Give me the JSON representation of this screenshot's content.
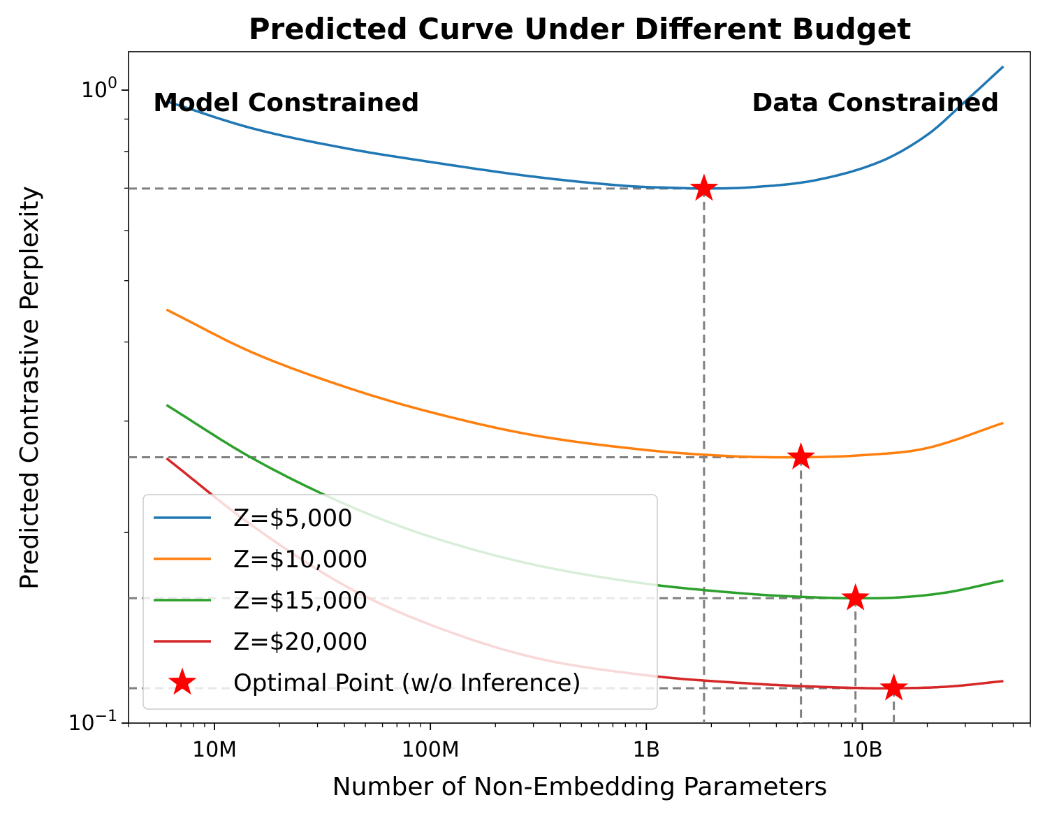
{
  "chart_data": {
    "type": "line",
    "title": "Predicted Curve Under Different Budget",
    "xlabel": "Number of Non-Embedding Parameters",
    "ylabel": "Predicted Contrastive Perplexity",
    "xscale": "log",
    "yscale": "log",
    "xlim": [
      4000000,
      60000000000
    ],
    "ylim": [
      0.1,
      1.15
    ],
    "x_ticks": [
      {
        "value": 10000000,
        "label": "10M"
      },
      {
        "value": 100000000,
        "label": "100M"
      },
      {
        "value": 1000000000,
        "label": "1B"
      },
      {
        "value": 10000000000,
        "label": "10B"
      }
    ],
    "y_ticks": [
      {
        "value": 1.0,
        "base": "10",
        "exp": "0"
      },
      {
        "value": 0.1,
        "base": "10",
        "exp": "−1"
      }
    ],
    "grid": false,
    "legend_position": "lower-left",
    "annotations": [
      {
        "text": "Model Constrained",
        "x": 5200000,
        "y": 0.958,
        "anchor": "start"
      },
      {
        "text": "Data Constrained",
        "x": 43000000000,
        "y": 0.958,
        "anchor": "end"
      }
    ],
    "series": [
      {
        "name": "Z=$5,000",
        "color": "#1f77b4",
        "x": [
          6000000,
          15000000,
          40000000,
          100000000,
          300000000,
          800000000,
          1500000000,
          1850000000,
          3000000000,
          6000000000,
          12000000000,
          20000000000,
          30000000000,
          45000000000
        ],
        "y": [
          0.96,
          0.87,
          0.81,
          0.77,
          0.73,
          0.706,
          0.7,
          0.699,
          0.702,
          0.72,
          0.77,
          0.85,
          0.96,
          1.09
        ]
      },
      {
        "name": "Z=$10,000",
        "color": "#ff7f0e",
        "x": [
          6000000,
          15000000,
          40000000,
          100000000,
          300000000,
          1000000000,
          2500000000,
          5200000000,
          10000000000,
          20000000000,
          45000000000
        ],
        "y": [
          0.45,
          0.385,
          0.34,
          0.31,
          0.285,
          0.27,
          0.264,
          0.263,
          0.265,
          0.272,
          0.298
        ]
      },
      {
        "name": "Z=$15,000",
        "color": "#2ca02c",
        "x": [
          6000000,
          15000000,
          40000000,
          100000000,
          300000000,
          1000000000,
          3000000000,
          6000000000,
          9300000000,
          15000000000,
          25000000000,
          45000000000
        ],
        "y": [
          0.318,
          0.262,
          0.222,
          0.197,
          0.178,
          0.166,
          0.16,
          0.158,
          0.1575,
          0.158,
          0.161,
          0.168
        ]
      },
      {
        "name": "Z=$20,000",
        "color": "#d62728",
        "x": [
          6000000,
          15000000,
          40000000,
          100000000,
          300000000,
          1000000000,
          3000000000,
          8000000000,
          14000000000,
          25000000000,
          45000000000
        ],
        "y": [
          0.262,
          0.205,
          0.165,
          0.143,
          0.127,
          0.119,
          0.1155,
          0.1138,
          0.1135,
          0.1142,
          0.1165
        ]
      }
    ],
    "optimal_points": {
      "name": "Optimal Point (w/o Inference)",
      "color": "#ff0000",
      "x": [
        1850000000,
        5200000000,
        9300000000,
        14000000000
      ],
      "y": [
        0.699,
        0.263,
        0.1575,
        0.1135
      ]
    }
  }
}
